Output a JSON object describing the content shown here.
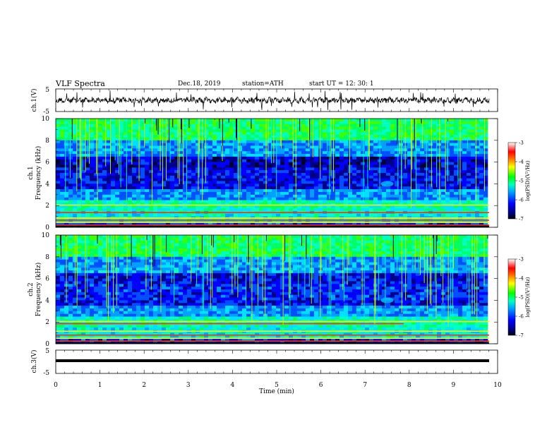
{
  "header": {
    "title": "VLF  Spectra",
    "date": "Dec.18, 2019",
    "station": "station=ATH",
    "start": "start  UT  =    12: 30: 1"
  },
  "chart_data": [
    {
      "type": "line",
      "name": "ch1-waveform",
      "ylabel": "ch.1(V)",
      "ylim": [
        -5,
        5
      ],
      "yticks": [
        "5",
        "-5"
      ],
      "xlim": [
        0,
        10
      ]
    },
    {
      "type": "heatmap",
      "name": "ch1-spectrogram",
      "ylabel": "ch.1\nFrequency (kHz)",
      "ylabel_top": "ch.1",
      "ylabel_bottom": "Frequency (kHz)",
      "ylim": [
        0,
        10
      ],
      "yticks": [
        "0",
        "2",
        "4",
        "6",
        "8",
        "10"
      ],
      "xlim": [
        0,
        10
      ],
      "colorbar": {
        "label": "log(PSD)(V²/Hz)",
        "ticks": [
          "-3",
          "-4",
          "-5",
          "-6",
          "-7"
        ],
        "range": [
          -7,
          -3
        ]
      }
    },
    {
      "type": "heatmap",
      "name": "ch2-spectrogram",
      "ylabel_top": "ch.2",
      "ylabel_bottom": "Frequency (kHz)",
      "ylim": [
        0,
        10
      ],
      "yticks": [
        "0",
        "2",
        "4",
        "6",
        "8",
        "10"
      ],
      "xlim": [
        0,
        10
      ],
      "colorbar": {
        "label": "log(PSD)(V²/Hz)",
        "ticks": [
          "-3",
          "-4",
          "-5",
          "-6",
          "-7"
        ],
        "range": [
          -7,
          -3
        ]
      }
    },
    {
      "type": "line",
      "name": "ch3-waveform",
      "ylabel": "ch.3(V)",
      "ylim": [
        -5,
        5
      ],
      "yticks": [
        "5",
        "-5"
      ],
      "xlim": [
        0,
        10
      ],
      "xlabel": "Time  (min)",
      "xticks": [
        "0",
        "1",
        "2",
        "3",
        "4",
        "5",
        "6",
        "7",
        "8",
        "9",
        "10"
      ]
    }
  ],
  "colors": {
    "background": "#ffffff",
    "axis": "#000000"
  }
}
